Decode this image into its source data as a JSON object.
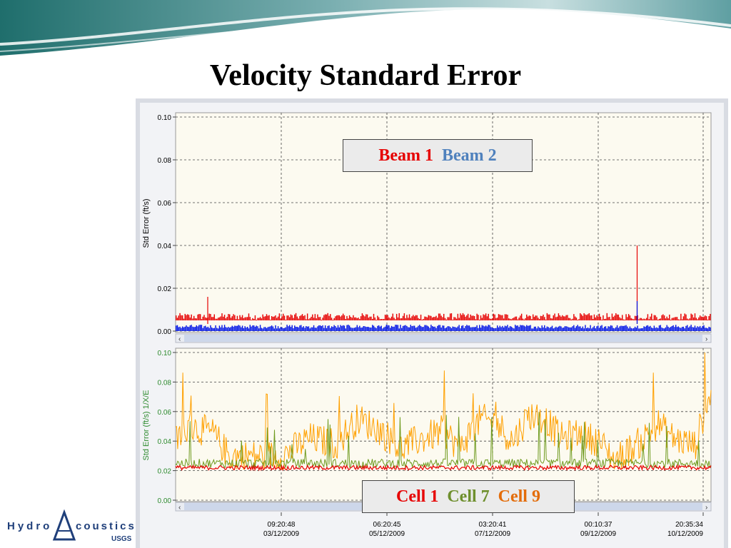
{
  "slide": {
    "title": "Velocity Standard Error"
  },
  "logo": {
    "left_text": "Hydro",
    "right_text": "coustics",
    "sub_text": "USGS"
  },
  "colors": {
    "beam1": "#e60000",
    "beam2": "#0014e6",
    "cell1": "#e60000",
    "cell7": "#6e9a1e",
    "cell9": "#ffa000",
    "plot_bg": "#fcfaf0",
    "legend_cell7": "#6e8f2d",
    "legend_cell9": "#e36c09",
    "legend_beam2": "#4f81bd"
  },
  "chart_data": [
    {
      "type": "line",
      "ylabel": "Std Error (ft/s)",
      "ylim": [
        0,
        0.1
      ],
      "yticks": [
        "0.10",
        "0.08",
        "0.06",
        "0.04",
        "0.02",
        "0.00"
      ],
      "grid": true,
      "legend_placement": "top-center",
      "legend": [
        "Beam 1",
        "Beam 2"
      ],
      "series": [
        {
          "name": "Beam 1",
          "typical": 0.007,
          "spikes": [
            {
              "x": 0.06,
              "y": 0.016
            },
            {
              "x": 0.862,
              "y": 0.04
            }
          ]
        },
        {
          "name": "Beam 2",
          "typical": 0.002,
          "spikes": [
            {
              "x": 0.862,
              "y": 0.014
            }
          ]
        }
      ]
    },
    {
      "type": "line",
      "ylabel": "Std Error (ft/s) 1/X/E",
      "ylim": [
        0,
        0.1
      ],
      "yticks": [
        "0.10",
        "0.08",
        "0.06",
        "0.04",
        "0.02",
        "0.00"
      ],
      "grid": true,
      "legend_placement": "bottom-center",
      "legend": [
        "Cell 1",
        "Cell 7",
        "Cell 9"
      ],
      "x_tick_labels": [
        {
          "time": "09:20:48",
          "date": "03/12/2009"
        },
        {
          "time": "06:20:45",
          "date": "05/12/2009"
        },
        {
          "time": "03:20:41",
          "date": "07/12/2009"
        },
        {
          "time": "00:10:37",
          "date": "09/12/2009"
        },
        {
          "time": "20:35:34",
          "date": "10/12/2009"
        }
      ],
      "series": [
        {
          "name": "Cell 1",
          "typical": 0.022
        },
        {
          "name": "Cell 7",
          "typical": 0.025
        },
        {
          "name": "Cell 9",
          "envelope": [
            [
              0,
              0.04
            ],
            [
              0.03,
              0.05
            ],
            [
              0.07,
              0.045
            ],
            [
              0.1,
              0.03
            ],
            [
              0.2,
              0.03
            ],
            [
              0.25,
              0.042
            ],
            [
              0.3,
              0.038
            ],
            [
              0.34,
              0.055
            ],
            [
              0.38,
              0.048
            ],
            [
              0.42,
              0.035
            ],
            [
              0.45,
              0.04
            ],
            [
              0.5,
              0.047
            ],
            [
              0.53,
              0.036
            ],
            [
              0.57,
              0.055
            ],
            [
              0.6,
              0.052
            ],
            [
              0.63,
              0.04
            ],
            [
              0.66,
              0.058
            ],
            [
              0.69,
              0.055
            ],
            [
              0.72,
              0.042
            ],
            [
              0.75,
              0.045
            ],
            [
              0.79,
              0.04
            ],
            [
              0.82,
              0.027
            ],
            [
              0.87,
              0.04
            ],
            [
              0.9,
              0.052
            ],
            [
              0.93,
              0.042
            ],
            [
              0.97,
              0.037
            ],
            [
              1.0,
              0.075
            ]
          ]
        }
      ]
    }
  ]
}
